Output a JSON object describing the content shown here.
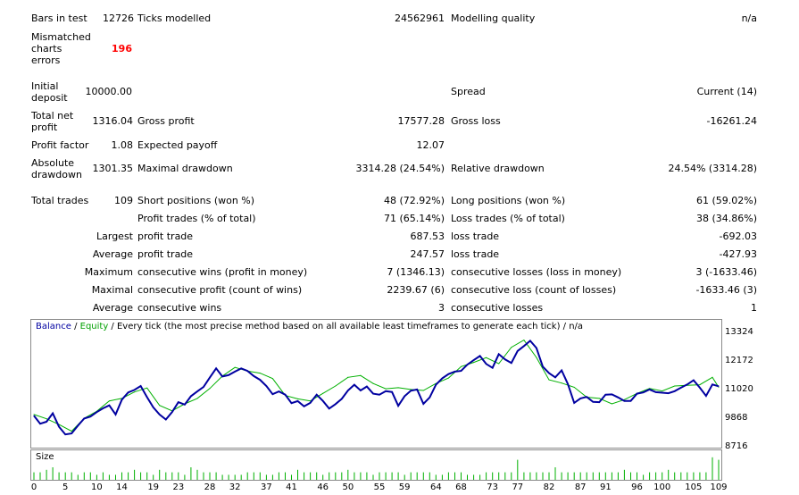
{
  "report": {
    "bars_label": "Bars in test",
    "bars_value": "12726",
    "ticks_label": "Ticks modelled",
    "ticks_value": "24562961",
    "quality_label": "Modelling quality",
    "quality_value": "n/a",
    "mismatch_label_1": "Mismatched",
    "mismatch_label_2": "charts",
    "mismatch_label_3": "errors",
    "mismatch_value": "196",
    "deposit_label_1": "Initial",
    "deposit_label_2": "deposit",
    "deposit_value": "10000.00",
    "spread_label": "Spread",
    "spread_value": "Current (14)",
    "netprofit_label_1": "Total net",
    "netprofit_label_2": "profit",
    "netprofit_value": "1316.04",
    "grossprofit_label": "Gross profit",
    "grossprofit_value": "17577.28",
    "grossloss_label": "Gross loss",
    "grossloss_value": "-16261.24",
    "pf_label": "Profit factor",
    "pf_value": "1.08",
    "payoff_label": "Expected payoff",
    "payoff_value": "12.07",
    "absdd_label_1": "Absolute",
    "absdd_label_2": "drawdown",
    "absdd_value": "1301.35",
    "maxdd_label": "Maximal drawdown",
    "maxdd_value": "3314.28 (24.54%)",
    "reldd_label": "Relative drawdown",
    "reldd_value": "24.54% (3314.28)",
    "trades_label": "Total trades",
    "trades_value": "109",
    "short_label": "Short positions (won %)",
    "short_value": "48 (72.92%)",
    "long_label": "Long positions (won %)",
    "long_value": "61 (59.02%)",
    "ptrades_label": "Profit trades (% of total)",
    "ptrades_value": "71 (65.14%)",
    "ltrades_label": "Loss trades (% of total)",
    "ltrades_value": "38 (34.86%)",
    "largest_label": "Largest",
    "largest_profit_label": "profit trade",
    "largest_profit_value": "687.53",
    "largest_loss_label": "loss trade",
    "largest_loss_value": "-692.03",
    "average_label": "Average",
    "average_profit_label": "profit trade",
    "average_profit_value": "247.57",
    "average_loss_label": "loss trade",
    "average_loss_value": "-427.93",
    "maximum_label": "Maximum",
    "max_wins_label": "consecutive wins (profit in money)",
    "max_wins_value": "7 (1346.13)",
    "max_losses_label": "consecutive losses (loss in money)",
    "max_losses_value": "3 (-1633.46)",
    "maximal_label": "Maximal",
    "maximal_profit_label": "consecutive profit (count of wins)",
    "maximal_profit_value": "2239.67 (6)",
    "maximal_loss_label": "consecutive loss (count of losses)",
    "maximal_loss_value": "-1633.46 (3)",
    "avg2_label": "Average",
    "avg_wins_label": "consecutive wins",
    "avg_wins_value": "3",
    "avg_losses_label": "consecutive losses",
    "avg_losses_value": "1"
  },
  "chart_caption": {
    "balance": "Balance",
    "sep1": " / ",
    "equity": "Equity",
    "rest": " / Every tick (the most precise method based on all available least timeframes to generate each tick) / n/a"
  },
  "size_label": "Size",
  "colors": {
    "balance": "#0000a0",
    "equity": "#00b000",
    "size_bars": "#00b000",
    "axis_border": "#8a8a8a"
  },
  "chart_data": {
    "type": "line",
    "ylim": [
      8716,
      13900
    ],
    "yticks": [
      "13324",
      "12172",
      "11020",
      "9868",
      "8716"
    ],
    "ytick_values": [
      13324,
      12172,
      11020,
      9868,
      8716
    ],
    "xticks": [
      "0",
      "5",
      "10",
      "14",
      "19",
      "23",
      "28",
      "32",
      "37",
      "41",
      "46",
      "50",
      "55",
      "59",
      "64",
      "68",
      "73",
      "77",
      "82",
      "87",
      "91",
      "96",
      "100",
      "105",
      "109"
    ],
    "xtick_values": [
      0,
      5,
      10,
      14,
      19,
      23,
      28,
      32,
      37,
      41,
      46,
      50,
      55,
      59,
      64,
      68,
      73,
      77,
      82,
      87,
      91,
      96,
      100,
      105,
      109
    ],
    "series": [
      {
        "name": "Balance",
        "x": [
          0,
          1,
          2,
          3,
          4,
          5,
          6,
          7,
          8,
          9,
          10,
          11,
          12,
          13,
          14,
          15,
          16,
          17,
          18,
          19,
          20,
          21,
          22,
          23,
          24,
          25,
          26,
          27,
          28,
          29,
          30,
          31,
          32,
          33,
          34,
          35,
          36,
          37,
          38,
          39,
          40,
          41,
          42,
          43,
          44,
          45,
          46,
          47,
          48,
          49,
          50,
          51,
          52,
          53,
          54,
          55,
          56,
          57,
          58,
          59,
          60,
          61,
          62,
          63,
          64,
          65,
          66,
          67,
          68,
          69,
          70,
          71,
          72,
          73,
          74,
          75,
          76,
          77,
          78,
          79,
          80,
          81,
          82,
          83,
          84,
          85,
          86,
          87,
          88,
          89,
          90,
          91,
          92,
          93,
          94,
          95,
          96,
          97,
          98,
          99,
          100,
          101,
          102,
          103,
          104,
          105,
          106,
          107,
          108,
          109
        ],
        "values": [
          10000,
          9680,
          9760,
          10100,
          9560,
          9250,
          9290,
          9600,
          9890,
          9970,
          10150,
          10300,
          10420,
          10050,
          10650,
          10940,
          11040,
          11200,
          10750,
          10340,
          10050,
          9850,
          10150,
          10550,
          10450,
          10790,
          10980,
          11160,
          11540,
          11910,
          11580,
          11640,
          11780,
          11910,
          11810,
          11600,
          11450,
          11200,
          10870,
          10980,
          10850,
          10510,
          10590,
          10380,
          10520,
          10850,
          10600,
          10290,
          10470,
          10680,
          11020,
          11250,
          11020,
          11180,
          10890,
          10850,
          10990,
          10960,
          10400,
          10790,
          11010,
          11060,
          10480,
          10740,
          11250,
          11510,
          11680,
          11780,
          11810,
          12060,
          12240,
          12410,
          12090,
          11930,
          12480,
          12270,
          12130,
          12610,
          12810,
          13020,
          12730,
          11980,
          11720,
          11550,
          11830,
          11280,
          10520,
          10700,
          10760,
          10560,
          10550,
          10850,
          10860,
          10740,
          10600,
          10600,
          10890,
          10940,
          11060,
          10950,
          10930,
          10910,
          10990,
          11130,
          11260,
          11430,
          11130,
          10800,
          11260,
          11190
        ]
      },
      {
        "name": "Equity",
        "x": [
          0,
          2,
          4,
          6,
          8,
          10,
          12,
          14,
          16,
          18,
          20,
          22,
          24,
          26,
          28,
          30,
          32,
          34,
          36,
          38,
          40,
          42,
          44,
          46,
          48,
          50,
          52,
          54,
          56,
          58,
          60,
          62,
          64,
          66,
          68,
          70,
          72,
          74,
          76,
          78,
          80,
          82,
          84,
          86,
          88,
          90,
          92,
          94,
          96,
          98,
          100,
          102,
          104,
          106,
          108,
          109
        ],
        "values": [
          10050,
          9880,
          9650,
          9380,
          9900,
          10180,
          10600,
          10700,
          10960,
          11120,
          10420,
          10200,
          10480,
          10700,
          11100,
          11600,
          11950,
          11800,
          11720,
          11500,
          10820,
          10680,
          10600,
          10900,
          11200,
          11550,
          11620,
          11300,
          11090,
          11130,
          11060,
          11020,
          11300,
          11520,
          11980,
          12150,
          12340,
          12100,
          12760,
          13050,
          12350,
          11450,
          11320,
          11150,
          10750,
          10700,
          10480,
          10650,
          10900,
          11100,
          11000,
          11200,
          11230,
          11250,
          11550,
          11150
        ]
      }
    ],
    "size": {
      "x": [
        0,
        1,
        2,
        3,
        4,
        5,
        6,
        7,
        8,
        9,
        10,
        11,
        12,
        13,
        14,
        15,
        16,
        17,
        18,
        19,
        20,
        21,
        22,
        23,
        24,
        25,
        26,
        27,
        28,
        29,
        30,
        31,
        32,
        33,
        34,
        35,
        36,
        37,
        38,
        39,
        40,
        41,
        42,
        43,
        44,
        45,
        46,
        47,
        48,
        49,
        50,
        51,
        52,
        53,
        54,
        55,
        56,
        57,
        58,
        59,
        60,
        61,
        62,
        63,
        64,
        65,
        66,
        67,
        68,
        69,
        70,
        71,
        72,
        73,
        74,
        75,
        76,
        77,
        78,
        79,
        80,
        81,
        82,
        83,
        84,
        85,
        86,
        87,
        88,
        89,
        90,
        91,
        92,
        93,
        94,
        95,
        96,
        97,
        98,
        99,
        100,
        101,
        102,
        103,
        104,
        105,
        106,
        107,
        108,
        109
      ],
      "values": [
        3,
        3,
        4,
        5,
        3,
        3,
        3,
        2,
        3,
        3,
        2,
        3,
        2,
        2,
        3,
        3,
        4,
        3,
        3,
        2,
        4,
        3,
        3,
        3,
        2,
        5,
        4,
        3,
        3,
        3,
        2,
        2,
        2,
        2,
        3,
        3,
        3,
        2,
        2,
        3,
        3,
        2,
        4,
        3,
        3,
        3,
        2,
        3,
        3,
        3,
        4,
        3,
        3,
        3,
        2,
        3,
        3,
        3,
        3,
        2,
        3,
        3,
        3,
        3,
        2,
        2,
        3,
        3,
        3,
        2,
        2,
        2,
        3,
        3,
        3,
        3,
        3,
        8,
        3,
        3,
        3,
        3,
        3,
        5,
        3,
        3,
        3,
        3,
        3,
        3,
        3,
        3,
        3,
        3,
        4,
        3,
        3,
        2,
        3,
        3,
        3,
        4,
        3,
        3,
        3,
        3,
        3,
        3,
        9,
        8
      ]
    }
  }
}
